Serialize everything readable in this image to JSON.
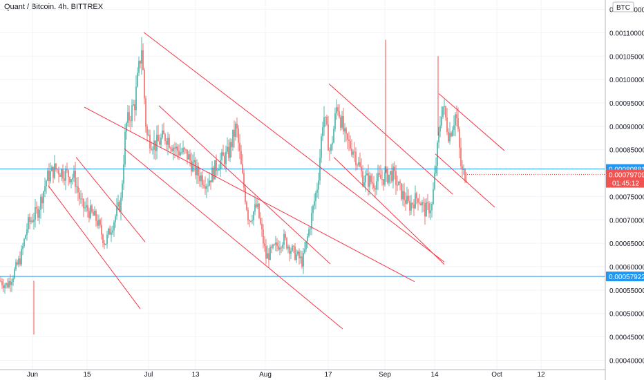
{
  "chart_data": {
    "type": "candlestick",
    "title": "Quant / Bitcoin, 4h, BITTREX",
    "currency": "BTC",
    "ylim": [
      0.00038,
      0.00117
    ],
    "y_ticks": [
      "0.00040000",
      "0.00045000",
      "0.00050000",
      "0.00055000",
      "0.00060000",
      "0.00065000",
      "0.00070000",
      "0.00075000",
      "0.00080000",
      "0.00085000",
      "0.00090000",
      "0.00095000",
      "0.00100000",
      "0.00105000",
      "0.00110000",
      "0.00115000"
    ],
    "x_labels": [
      "Jun",
      "15",
      "Jul",
      "13",
      "Aug",
      "17",
      "Sep",
      "14",
      "Oct",
      "12"
    ],
    "x_label_positions": [
      47,
      126,
      215,
      283,
      384,
      475,
      557,
      629,
      719,
      783
    ],
    "x_range": [
      0,
      875
    ],
    "horizontal_lines": [
      {
        "price": 0.00080881,
        "label": "0.00080881",
        "color": "#2196f3"
      },
      {
        "price": 0.00057922,
        "label": "0.00057922",
        "color": "#2196f3"
      }
    ],
    "last_price": {
      "value": "0.00079709",
      "countdown": "01:45:12",
      "color": "#f05350"
    },
    "trend_lines": [
      {
        "x1": 110,
        "p1": 0.000834,
        "x2": 210,
        "p2": 0.000653
      },
      {
        "x1": 70,
        "p1": 0.000773,
        "x2": 203,
        "p2": 0.00051
      },
      {
        "x1": 122,
        "p1": 0.000941,
        "x2": 600,
        "p2": 0.000568
      },
      {
        "x1": 230,
        "p1": 0.000944,
        "x2": 478,
        "p2": 0.000606
      },
      {
        "x1": 208,
        "p1": 0.001101,
        "x2": 643,
        "p2": 0.00061
      },
      {
        "x1": 180,
        "p1": 0.000852,
        "x2": 496,
        "p2": 0.000467
      },
      {
        "x1": 476,
        "p1": 0.000991,
        "x2": 655,
        "p2": 0.000755
      },
      {
        "x1": 483,
        "p1": 0.000834,
        "x2": 643,
        "p2": 0.000605
      },
      {
        "x1": 635,
        "p1": 0.00097,
        "x2": 730,
        "p2": 0.000848
      },
      {
        "x1": 630,
        "p1": 0.000841,
        "x2": 716,
        "p2": 0.000727
      }
    ],
    "price_path": [
      [
        0,
        0.00057
      ],
      [
        10,
        0.00056
      ],
      [
        18,
        0.00058
      ],
      [
        30,
        0.00062
      ],
      [
        40,
        0.00069
      ],
      [
        55,
        0.00072
      ],
      [
        68,
        0.00079
      ],
      [
        80,
        0.00081
      ],
      [
        95,
        0.0008
      ],
      [
        108,
        0.00079
      ],
      [
        118,
        0.00073
      ],
      [
        128,
        0.00072
      ],
      [
        140,
        0.0007
      ],
      [
        152,
        0.00065
      ],
      [
        165,
        0.0007
      ],
      [
        175,
        0.00074
      ],
      [
        182,
        0.0009
      ],
      [
        195,
        0.00095
      ],
      [
        205,
        0.00107
      ],
      [
        212,
        0.00088
      ],
      [
        225,
        0.00086
      ],
      [
        240,
        0.00088
      ],
      [
        255,
        0.00085
      ],
      [
        270,
        0.00084
      ],
      [
        285,
        0.0008
      ],
      [
        300,
        0.00078
      ],
      [
        315,
        0.00082
      ],
      [
        330,
        0.00084
      ],
      [
        342,
        0.0009
      ],
      [
        350,
        0.0008
      ],
      [
        360,
        0.0007
      ],
      [
        372,
        0.00073
      ],
      [
        385,
        0.00062
      ],
      [
        398,
        0.00064
      ],
      [
        410,
        0.00066
      ],
      [
        425,
        0.00063
      ],
      [
        438,
        0.00061
      ],
      [
        450,
        0.0007
      ],
      [
        460,
        0.00078
      ],
      [
        468,
        0.00093
      ],
      [
        478,
        0.00084
      ],
      [
        488,
        0.00095
      ],
      [
        500,
        0.00087
      ],
      [
        512,
        0.00085
      ],
      [
        525,
        0.00079
      ],
      [
        540,
        0.00078
      ],
      [
        555,
        0.00079
      ],
      [
        568,
        0.0008
      ],
      [
        580,
        0.00076
      ],
      [
        592,
        0.00073
      ],
      [
        605,
        0.00075
      ],
      [
        615,
        0.00072
      ],
      [
        625,
        0.00073
      ],
      [
        633,
        0.00085
      ],
      [
        640,
        0.00095
      ],
      [
        650,
        0.00088
      ],
      [
        660,
        0.00093
      ],
      [
        668,
        0.0008
      ],
      [
        676,
        0.000797
      ]
    ],
    "wick_spikes": [
      [
        49,
        0.000455,
        0.00057
      ],
      [
        558,
        0.001085,
        0.0008
      ],
      [
        634,
        0.00105,
        0.00088
      ]
    ]
  }
}
